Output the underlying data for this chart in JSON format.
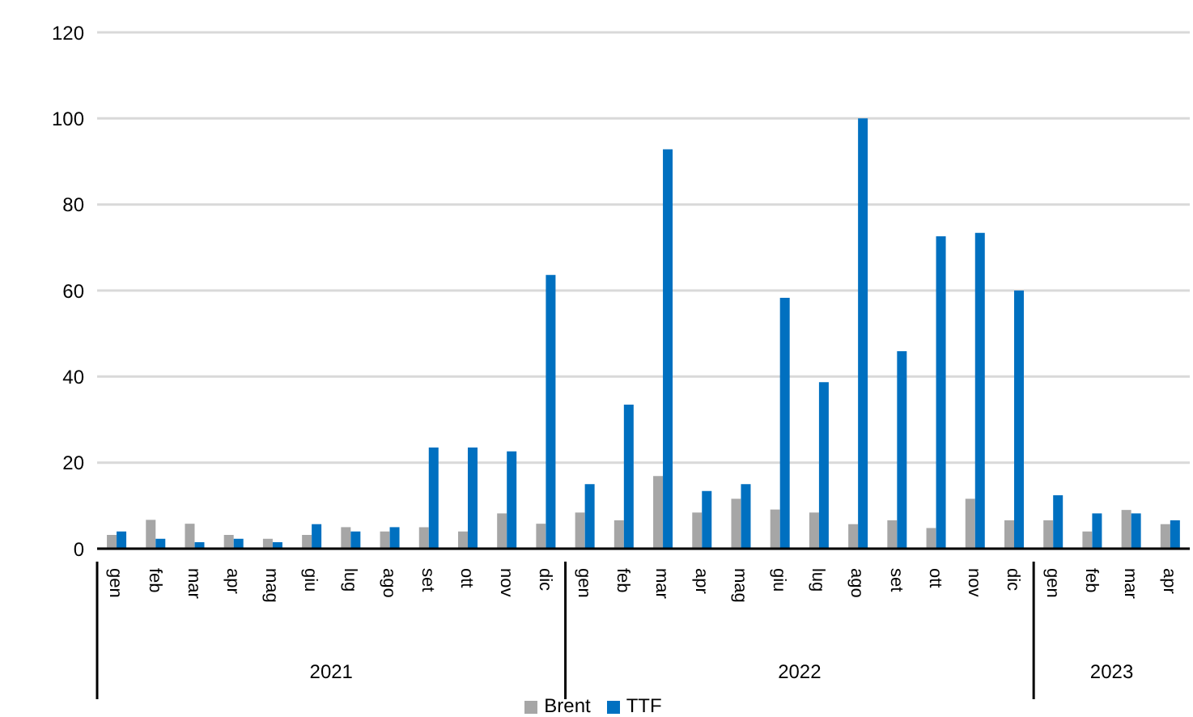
{
  "chart_data": {
    "type": "bar",
    "categories": [
      "gen",
      "feb",
      "mar",
      "apr",
      "mag",
      "giu",
      "lug",
      "ago",
      "set",
      "ott",
      "nov",
      "dic",
      "gen",
      "feb",
      "mar",
      "apr",
      "mag",
      "giu",
      "lug",
      "ago",
      "set",
      "ott",
      "nov",
      "dic",
      "gen",
      "feb",
      "mar",
      "apr"
    ],
    "series": [
      {
        "name": "Brent",
        "color": "#a6a6a6",
        "values": [
          3.2,
          6.7,
          5.8,
          3.2,
          2.3,
          3.2,
          5,
          4,
          5,
          4,
          8.2,
          5.8,
          8.4,
          6.6,
          16.9,
          8.4,
          11.6,
          9.1,
          8.4,
          5.7,
          6.6,
          4.8,
          11.6,
          6.6,
          6.6,
          4,
          9,
          5.7
        ]
      },
      {
        "name": "TTF",
        "color": "#0070c0",
        "values": [
          4,
          2.3,
          1.5,
          2.3,
          1.5,
          5.7,
          4,
          5,
          23.5,
          23.5,
          22.6,
          63.6,
          15,
          33.5,
          92.8,
          13.4,
          15,
          58.3,
          38.7,
          100,
          45.9,
          72.6,
          73.4,
          60,
          12.4,
          8.2,
          8.2,
          6.6
        ]
      }
    ],
    "annotations": [
      "2021",
      "2022",
      "2023"
    ],
    "ylim": [
      0,
      120
    ],
    "yticks": [
      0,
      20,
      40,
      60,
      80,
      100,
      120
    ],
    "grid": "y",
    "legend": "bottom"
  }
}
